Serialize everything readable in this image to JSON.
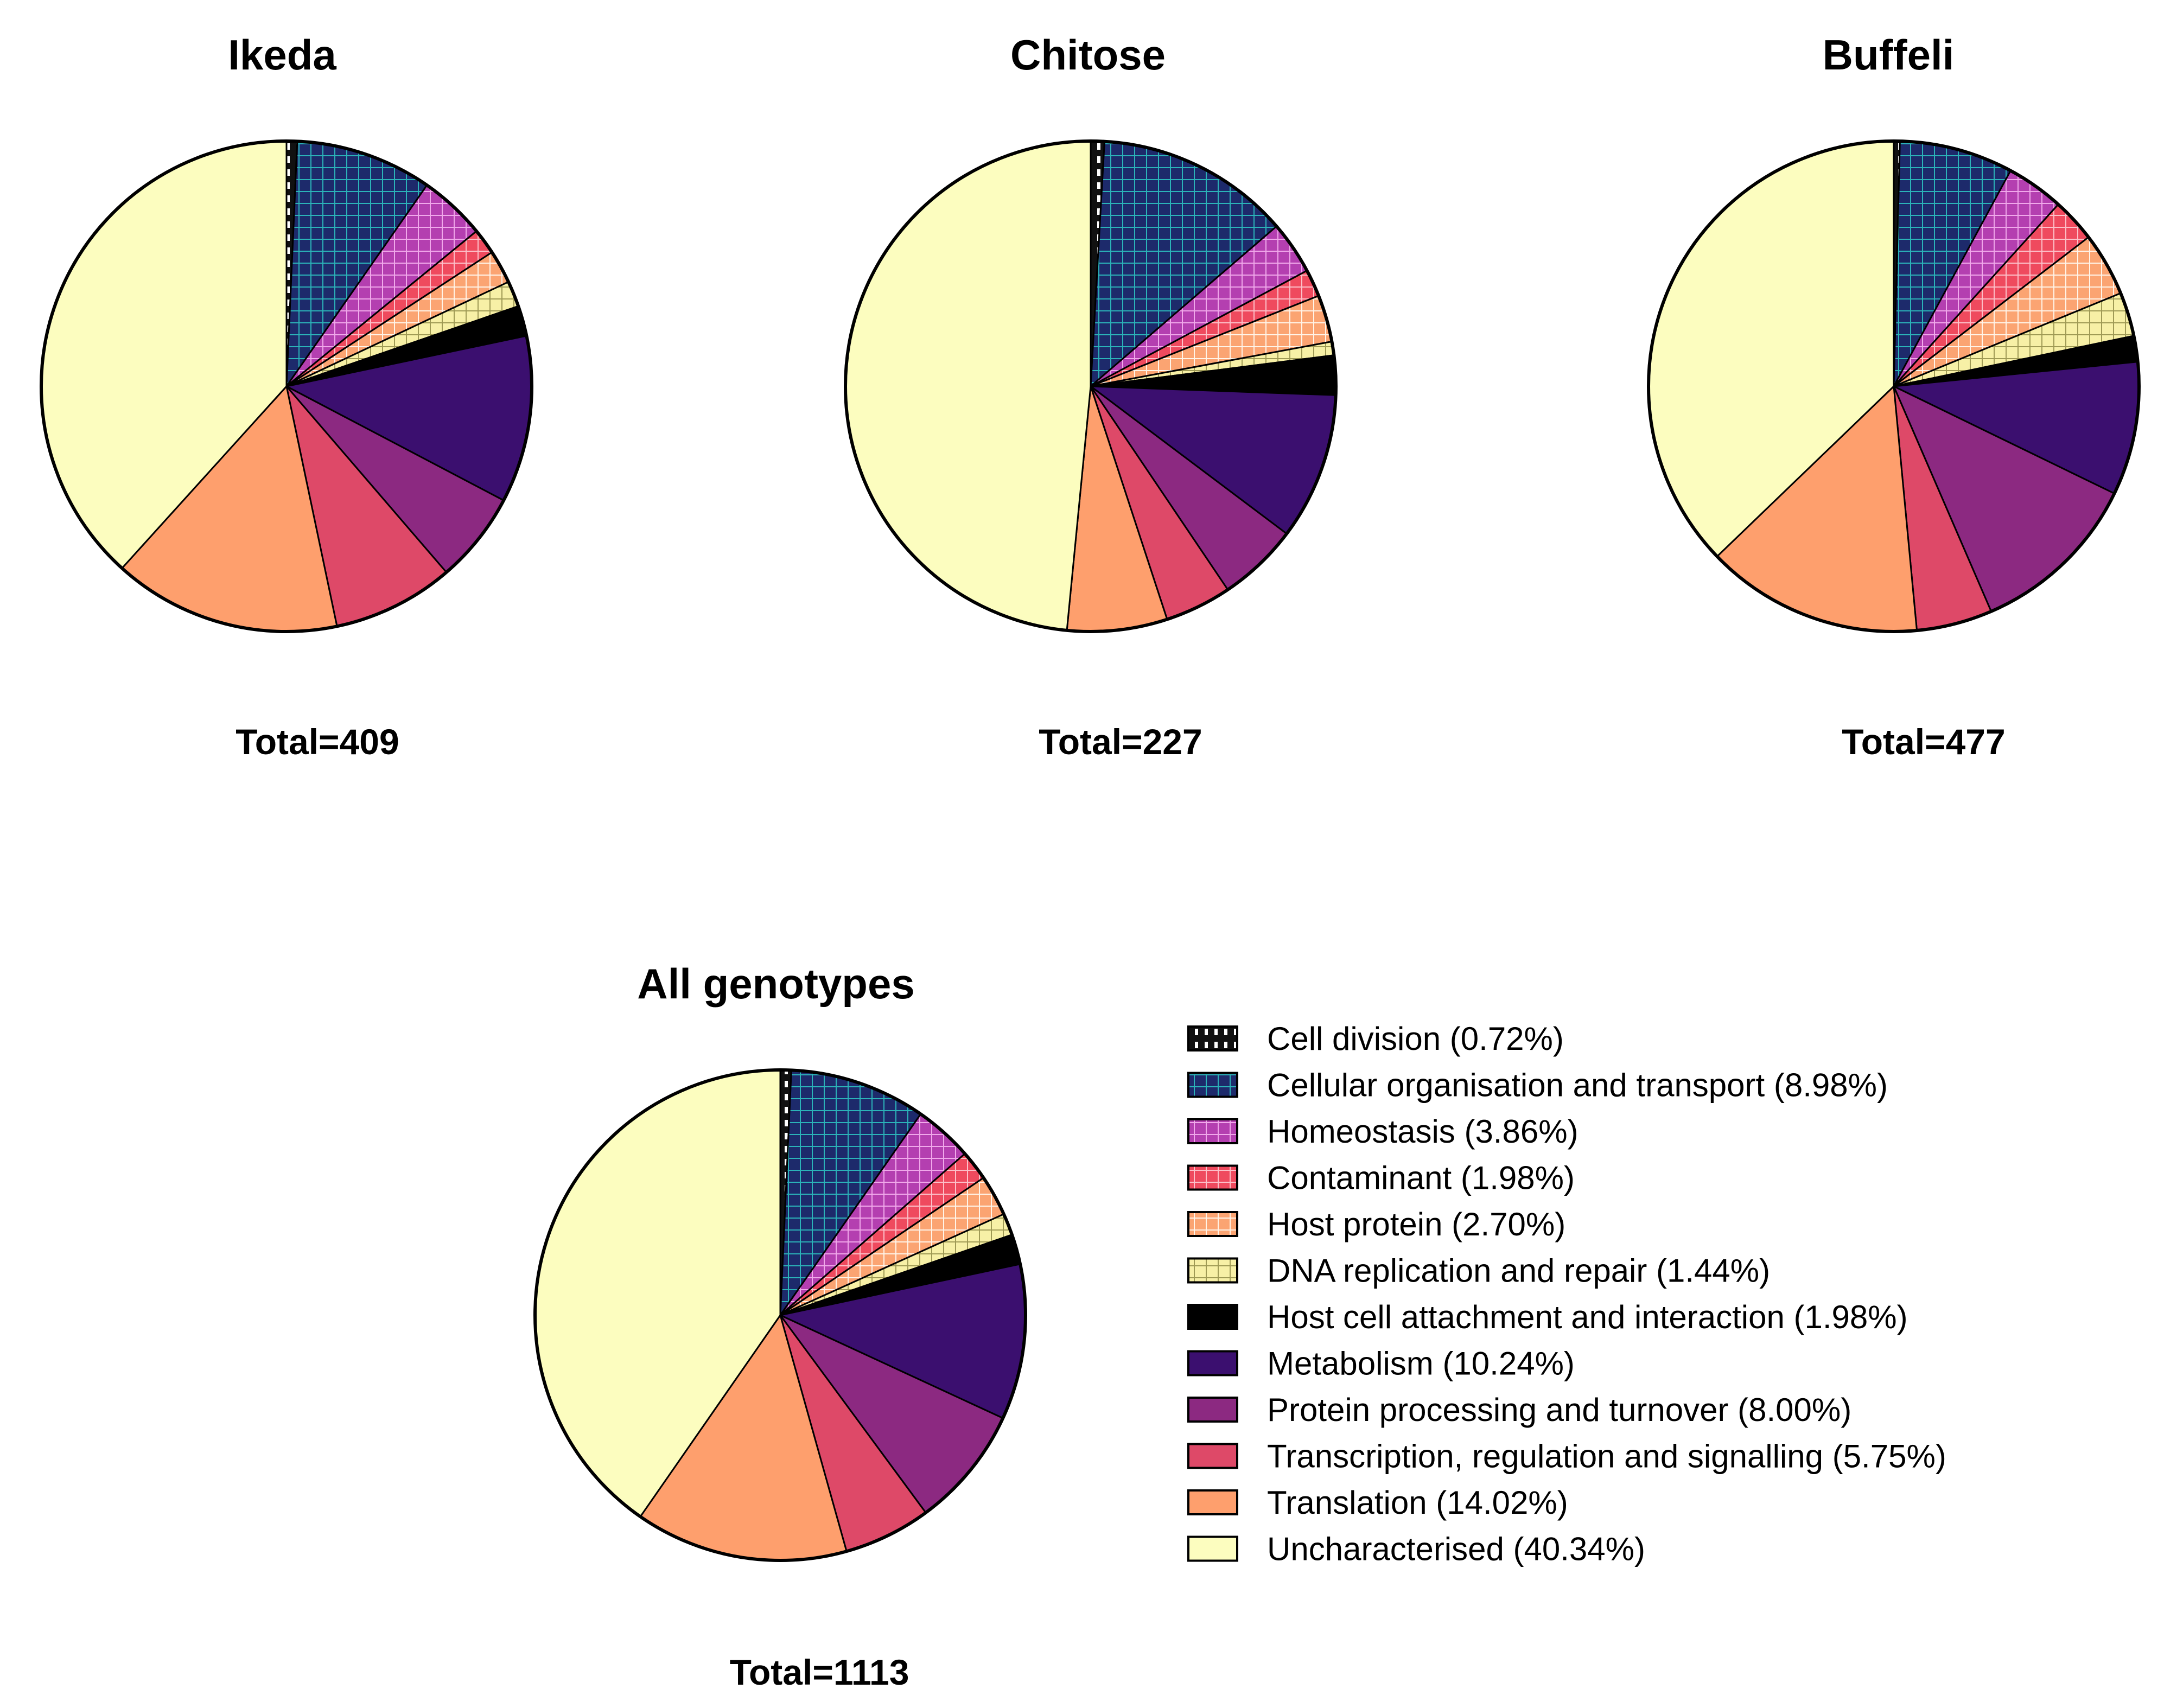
{
  "categories": [
    {
      "name": "Cell division",
      "color": "#1a1a1a",
      "pattern": "dash"
    },
    {
      "name": "Cellular organisation and transport",
      "color": "#1d2a6b",
      "pattern": "grid"
    },
    {
      "name": "Homeostasis",
      "color": "#b43fb0",
      "pattern": "grid"
    },
    {
      "name": "Contaminant",
      "color": "#ef4a5e",
      "pattern": "grid"
    },
    {
      "name": "Host protein",
      "color": "#fba472",
      "pattern": "grid"
    },
    {
      "name": "DNA replication and repair",
      "color": "#f7f0a6",
      "pattern": "grid"
    },
    {
      "name": "Host cell attachment and interaction",
      "color": "#000000",
      "pattern": "solid"
    },
    {
      "name": "Metabolism",
      "color": "#3b0f6f",
      "pattern": "solid"
    },
    {
      "name": "Protein processing and turnover",
      "color": "#8c2981",
      "pattern": "solid"
    },
    {
      "name": "Transcription, regulation and signalling",
      "color": "#de4968",
      "pattern": "solid"
    },
    {
      "name": "Translation",
      "color": "#fe9f6d",
      "pattern": "solid"
    },
    {
      "name": "Uncharacterised",
      "color": "#fcfdbf",
      "pattern": "solid"
    }
  ],
  "chart_data": [
    {
      "type": "pie",
      "id": "ikeda",
      "title": "Ikeda",
      "total_label": "Total=409",
      "values": [
        0.7,
        9.0,
        4.4,
        1.7,
        2.2,
        1.7,
        2.0,
        11.0,
        6.0,
        8.0,
        15.0,
        38.3
      ]
    },
    {
      "type": "pie",
      "id": "chitose",
      "title": "Chitose",
      "total_label": "Total=227",
      "values": [
        0.9,
        12.8,
        3.5,
        1.8,
        3.1,
        0.9,
        2.6,
        9.7,
        5.3,
        4.4,
        6.6,
        48.5
      ]
    },
    {
      "type": "pie",
      "id": "buffeli",
      "title": "Buffeli",
      "total_label": "Total=477",
      "values": [
        0.4,
        7.5,
        3.8,
        2.9,
        4.2,
        2.9,
        1.7,
        8.8,
        11.3,
        5.0,
        14.3,
        37.2
      ]
    },
    {
      "type": "pie",
      "id": "all",
      "title": "All genotypes",
      "total_label": "Total=1113",
      "values": [
        0.72,
        8.98,
        3.86,
        1.98,
        2.7,
        1.44,
        1.98,
        10.24,
        8.0,
        5.75,
        14.02,
        40.34
      ]
    }
  ],
  "legend": {
    "items": [
      "Cell division (0.72%)",
      "Cellular organisation and transport (8.98%)",
      "Homeostasis (3.86%)",
      "Contaminant (1.98%)",
      "Host protein (2.70%)",
      "DNA replication and repair (1.44%)",
      "Host cell attachment and interaction (1.98%)",
      "Metabolism (10.24%)",
      "Protein processing and turnover (8.00%)",
      "Transcription, regulation and signalling (5.75%)",
      "Translation (14.02%)",
      "Uncharacterised (40.34%)"
    ]
  }
}
